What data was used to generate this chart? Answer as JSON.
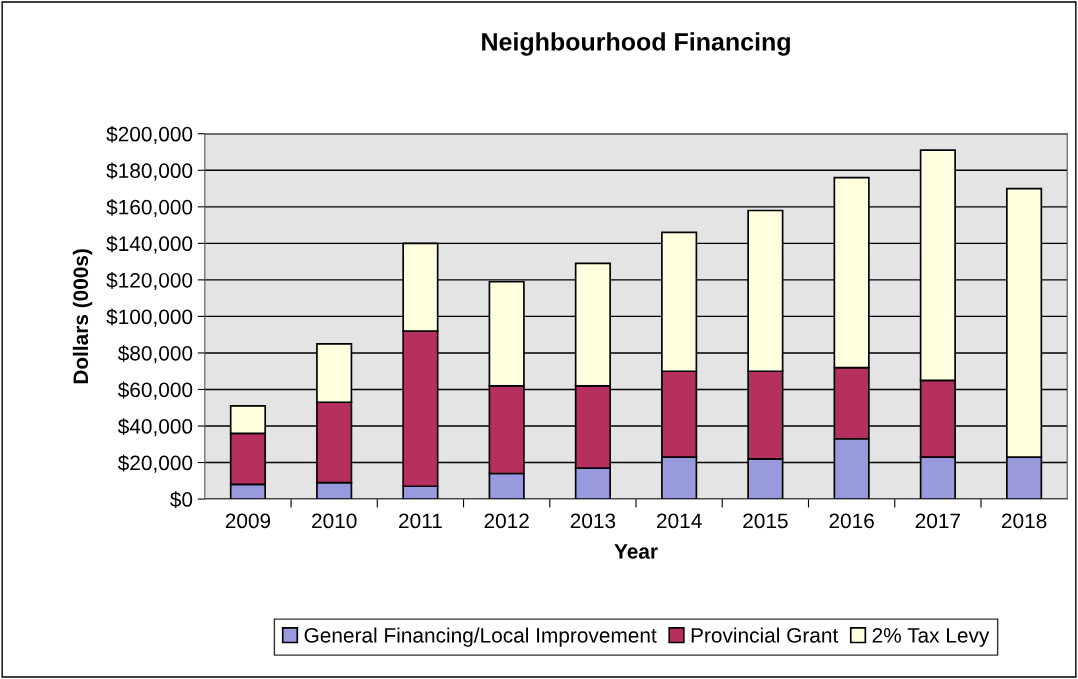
{
  "chart_data": {
    "type": "bar",
    "stacked": true,
    "title": "Neighbourhood Financing",
    "xlabel": "Year",
    "ylabel": "Dollars (000s)",
    "categories": [
      "2009",
      "2010",
      "2011",
      "2012",
      "2013",
      "2014",
      "2015",
      "2016",
      "2017",
      "2018"
    ],
    "series": [
      {
        "name": "General Financing/Local Improvement",
        "color": "#9999dd",
        "values": [
          8000,
          9000,
          7000,
          14000,
          17000,
          23000,
          22000,
          33000,
          23000,
          23000
        ]
      },
      {
        "name": "Provincial Grant",
        "color": "#b5305f",
        "values": [
          28000,
          44000,
          85000,
          48000,
          45000,
          47000,
          48000,
          39000,
          42000,
          null
        ]
      },
      {
        "name": "2% Tax Levy",
        "color": "#ffffe0",
        "values": [
          15000,
          32000,
          48000,
          57000,
          67000,
          76000,
          88000,
          104000,
          126000,
          147000
        ]
      }
    ],
    "ylim": [
      0,
      200000
    ],
    "yticks": [
      {
        "value": 0,
        "label": "$0"
      },
      {
        "value": 20000,
        "label": "$20,000"
      },
      {
        "value": 40000,
        "label": "$40,000"
      },
      {
        "value": 60000,
        "label": "$60,000"
      },
      {
        "value": 80000,
        "label": "$80,000"
      },
      {
        "value": 100000,
        "label": "$100,000"
      },
      {
        "value": 120000,
        "label": "$120,000"
      },
      {
        "value": 140000,
        "label": "$140,000"
      },
      {
        "value": 160000,
        "label": "$160,000"
      },
      {
        "value": 180000,
        "label": "$180,000"
      },
      {
        "value": 200000,
        "label": "$200,000"
      }
    ],
    "grid": "y",
    "legend": "bottom"
  }
}
